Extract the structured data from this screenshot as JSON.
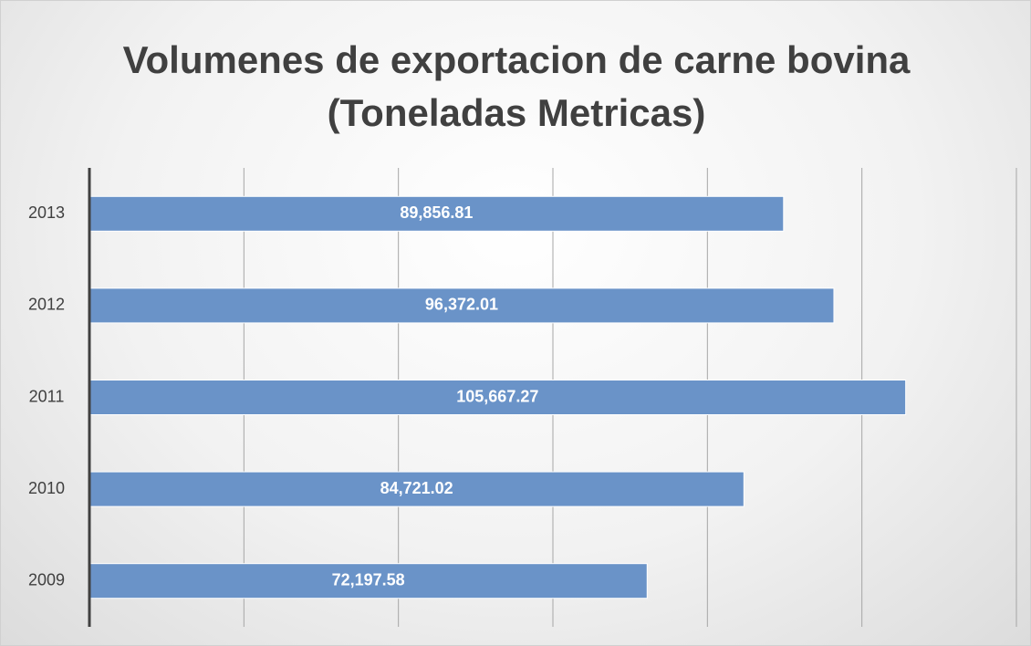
{
  "chart_data": {
    "type": "bar",
    "orientation": "horizontal",
    "title": "Volumenes de exportacion de carne bovina (Toneladas Metricas)",
    "categories": [
      "2009",
      "2010",
      "2011",
      "2012",
      "2013"
    ],
    "values": [
      72197.58,
      84721.02,
      105667.27,
      96372.01,
      89856.81
    ],
    "value_labels": [
      "72,197.58",
      "84,721.02",
      "105,667.27",
      "96,372.01",
      "89,856.81"
    ],
    "color": "#6a93c8",
    "xlim": [
      0,
      120000
    ],
    "xticks": [
      0,
      20000,
      40000,
      60000,
      80000,
      100000,
      120000
    ],
    "grid": true
  }
}
